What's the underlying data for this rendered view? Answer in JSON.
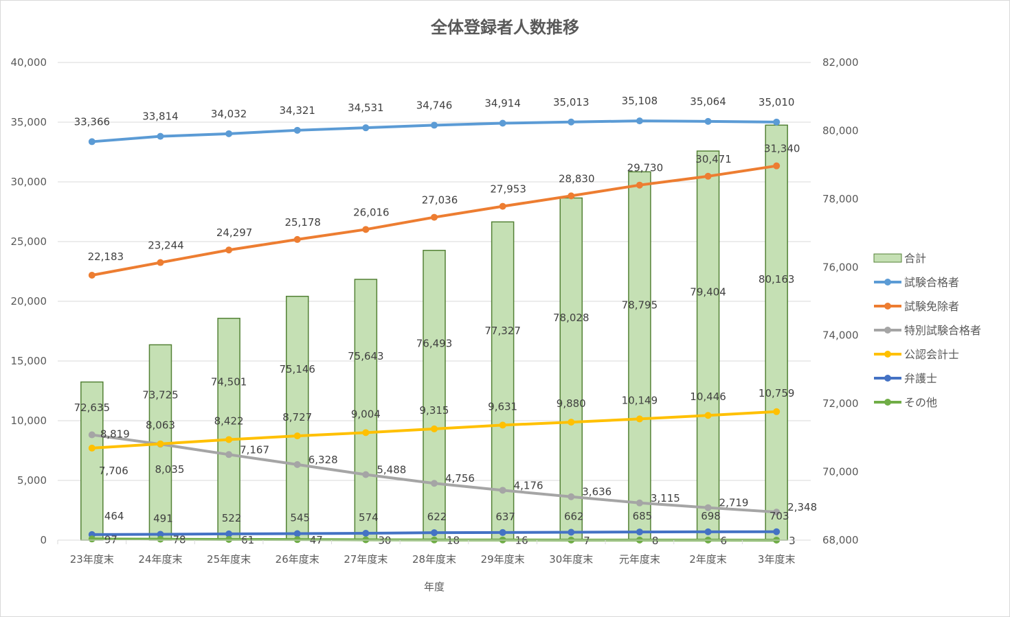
{
  "chart_data": {
    "type": "bar+line",
    "title": "全体登録者人数推移",
    "xlabel": "年度",
    "ylabel": "",
    "y2label": "",
    "categories": [
      "23年度末",
      "24年度末",
      "25年度末",
      "26年度末",
      "27年度末",
      "28年度末",
      "29年度末",
      "30年度末",
      "元年度末",
      "2年度末",
      "3年度末"
    ],
    "ylim": [
      0,
      40000
    ],
    "yticks": [
      0,
      5000,
      10000,
      15000,
      20000,
      25000,
      30000,
      35000,
      40000
    ],
    "y2lim": [
      68000,
      82000
    ],
    "y2ticks": [
      68000,
      70000,
      72000,
      74000,
      76000,
      78000,
      80000,
      82000
    ],
    "grid": true,
    "legend_position": "right",
    "series": [
      {
        "name": "合計",
        "type": "bar",
        "axis": "right",
        "color": "#c5e0b4",
        "edge": "#538135",
        "values": [
          72635,
          73725,
          74501,
          75146,
          75643,
          76493,
          77327,
          78028,
          78795,
          79404,
          80163
        ]
      },
      {
        "name": "試験合格者",
        "type": "line",
        "axis": "left",
        "color": "#5b9bd5",
        "values": [
          33366,
          33814,
          34032,
          34321,
          34531,
          34746,
          34914,
          35013,
          35108,
          35064,
          35010
        ]
      },
      {
        "name": "試験免除者",
        "type": "line",
        "axis": "left",
        "color": "#ed7d31",
        "values": [
          22183,
          23244,
          24297,
          25178,
          26016,
          27036,
          27953,
          28830,
          29730,
          30471,
          31340
        ]
      },
      {
        "name": "特別試験合格者",
        "type": "line",
        "axis": "left",
        "color": "#a5a5a5",
        "values": [
          8819,
          8035,
          7167,
          6328,
          5488,
          4756,
          4176,
          3636,
          3115,
          2719,
          2348
        ]
      },
      {
        "name": "公認会計士",
        "type": "line",
        "axis": "left",
        "color": "#ffc000",
        "values": [
          7706,
          8063,
          8422,
          8727,
          9004,
          9315,
          9631,
          9880,
          10149,
          10446,
          10759
        ]
      },
      {
        "name": "弁護士",
        "type": "line",
        "axis": "left",
        "color": "#4472c4",
        "values": [
          464,
          491,
          522,
          545,
          574,
          622,
          637,
          662,
          685,
          698,
          703
        ]
      },
      {
        "name": "その他",
        "type": "line",
        "axis": "left",
        "color": "#70ad47",
        "values": [
          97,
          78,
          61,
          47,
          30,
          18,
          16,
          7,
          8,
          6,
          3
        ]
      }
    ]
  }
}
